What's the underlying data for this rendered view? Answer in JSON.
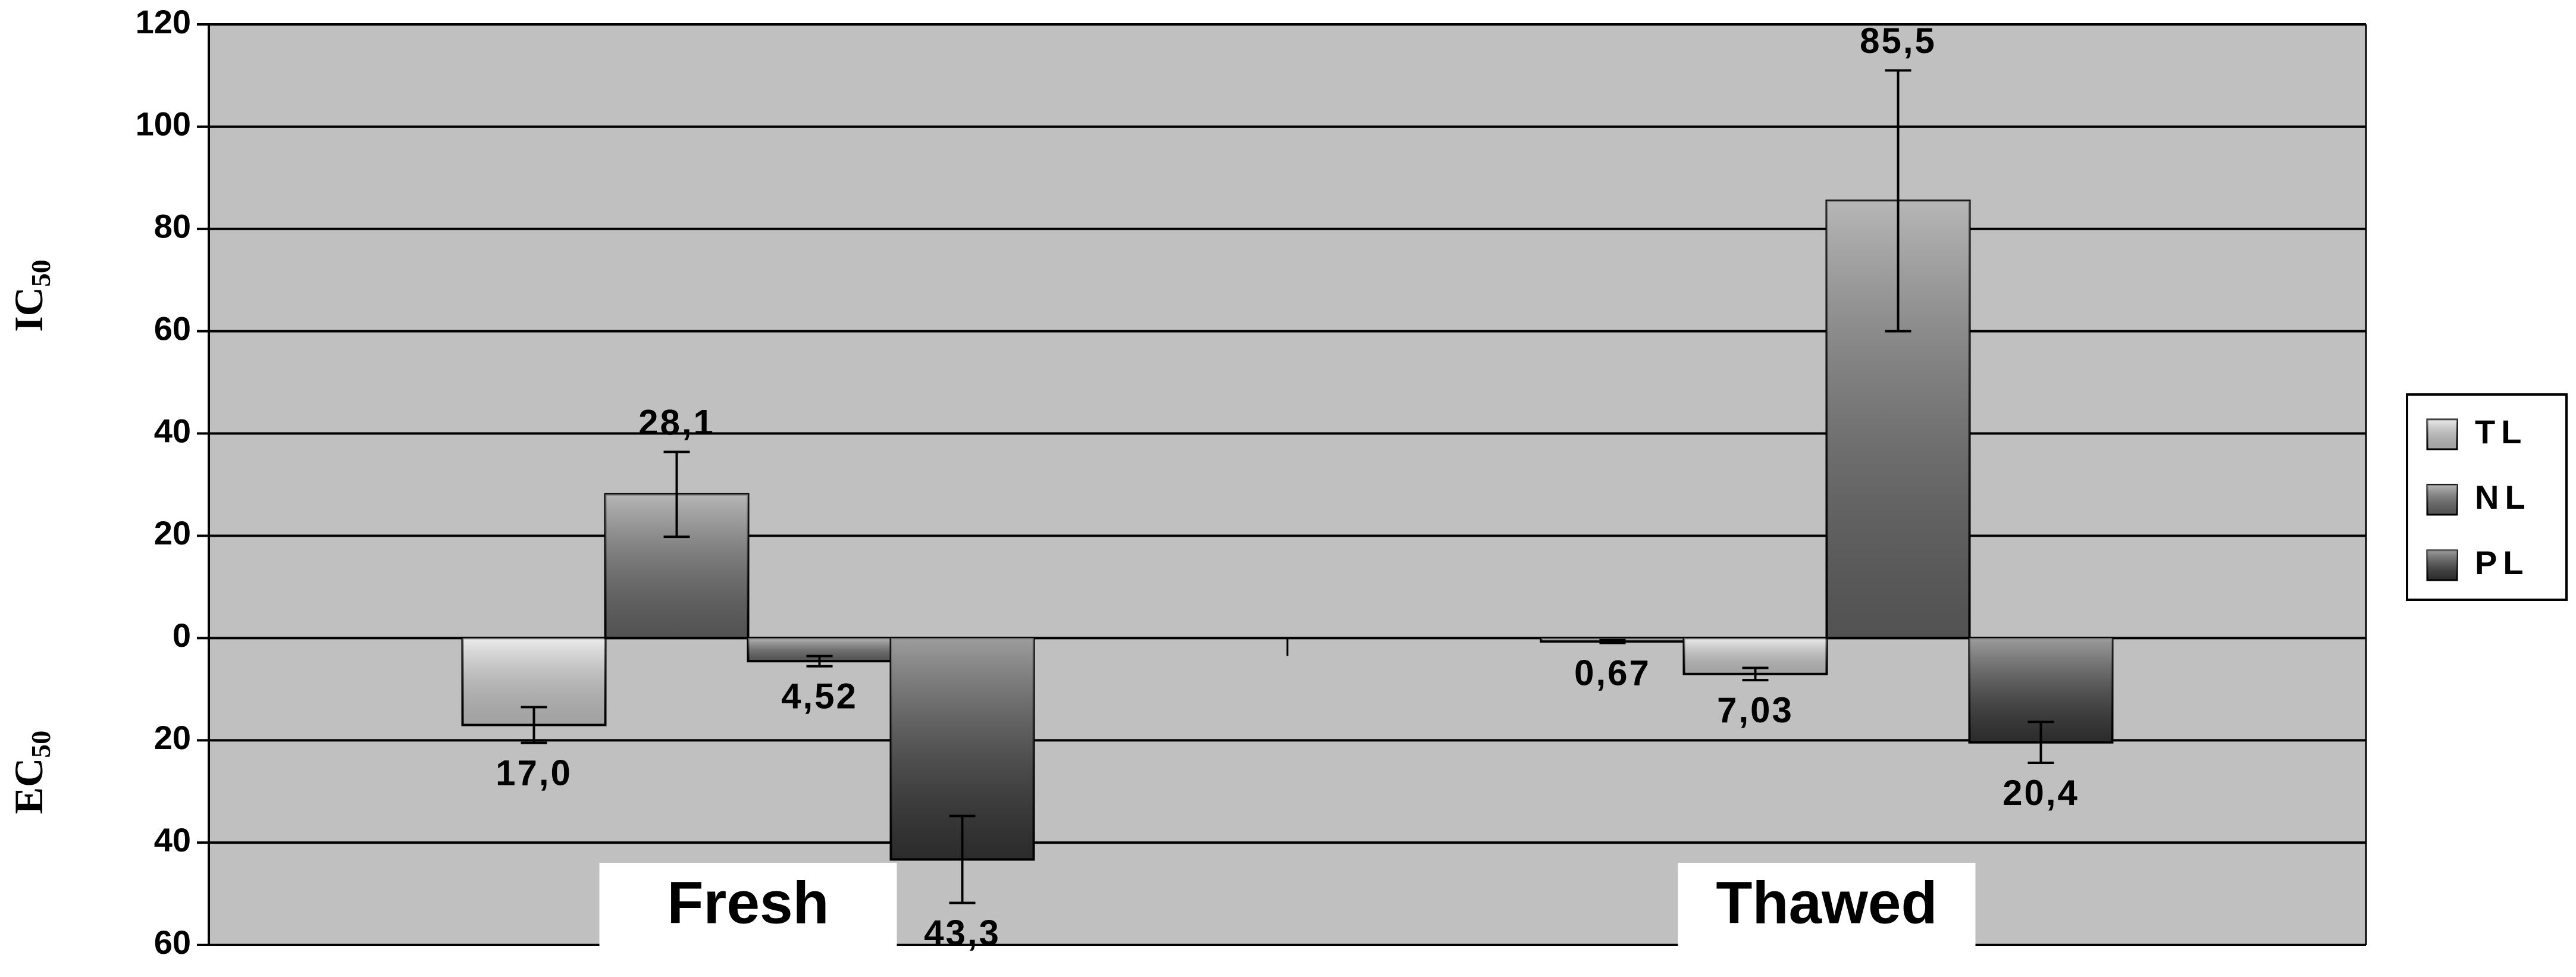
{
  "chart_data": {
    "type": "bar",
    "y_label_top": {
      "text": "IC",
      "sub": "50"
    },
    "y_label_bottom": {
      "text": "EC",
      "sub": "50"
    },
    "categories": [
      "Fresh",
      "Thawed"
    ],
    "series": [
      {
        "name": "TL",
        "color": "#d9d9d9"
      },
      {
        "name": "NL",
        "color": "#6e6e6e"
      },
      {
        "name": "PL",
        "color": "#3a3a3a"
      }
    ],
    "bars": [
      [
        {
          "series": 0,
          "value": -17.0,
          "value_label": "17,0",
          "error": 3.5
        },
        {
          "series": 1,
          "value": 28.1,
          "value_label": "28,1",
          "error": 8.3
        },
        {
          "series": 1,
          "value": -4.52,
          "value_label": "4,52",
          "error": 1
        },
        {
          "series": 2,
          "value": -43.3,
          "value_label": "43,3",
          "error": 8.5
        }
      ],
      [
        {
          "series": 0,
          "value": -0.67,
          "value_label": "0,67",
          "error": 0.3
        },
        {
          "series": 0,
          "value": -7.03,
          "value_label": "7,03",
          "error": 1.2
        },
        {
          "series": 1,
          "value": 85.5,
          "value_label": "85,5",
          "error": 25.5
        },
        {
          "series": 2,
          "value": -20.4,
          "value_label": "20,4",
          "error": 4
        }
      ]
    ],
    "ylim": [
      -60,
      120
    ],
    "yticks": [
      {
        "value": -60,
        "label": "60"
      },
      {
        "value": -40,
        "label": "40"
      },
      {
        "value": -20,
        "label": "20"
      },
      0,
      20,
      40,
      60,
      80,
      100,
      120
    ],
    "grid": true,
    "legend": "right"
  }
}
